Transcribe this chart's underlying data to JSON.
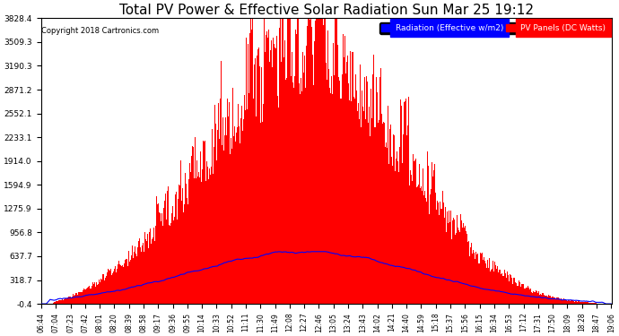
{
  "title": "Total PV Power & Effective Solar Radiation Sun Mar 25 19:12",
  "copyright": "Copyright 2018 Cartronics.com",
  "legend_radiation": "Radiation (Effective w/m2)",
  "legend_pv": "PV Panels (DC Watts)",
  "yticks": [
    -0.4,
    318.7,
    637.7,
    956.8,
    1275.9,
    1594.9,
    1914.0,
    2233.1,
    2552.1,
    2871.2,
    3190.3,
    3509.3,
    3828.4
  ],
  "ymin": -0.4,
  "ymax": 3828.4,
  "background_color": "#ffffff",
  "plot_bg_color": "#ffffff",
  "grid_color": "#aaaaaa",
  "red_fill_color": "#ff0000",
  "blue_line_color": "#0000ff",
  "title_color": "#000000",
  "title_fontsize": 11,
  "xtick_labels": [
    "06:44",
    "07:04",
    "07:23",
    "07:42",
    "08:01",
    "08:20",
    "08:39",
    "08:58",
    "09:17",
    "09:36",
    "09:55",
    "10:14",
    "10:33",
    "10:52",
    "11:11",
    "11:30",
    "11:49",
    "12:08",
    "12:27",
    "12:46",
    "13:05",
    "13:24",
    "13:43",
    "14:02",
    "14:21",
    "14:40",
    "14:59",
    "15:18",
    "15:37",
    "15:56",
    "16:15",
    "16:34",
    "16:53",
    "17:12",
    "17:31",
    "17:50",
    "18:09",
    "18:28",
    "18:47",
    "19:06"
  ],
  "num_points": 780,
  "rad_peak": 700,
  "pv_peak": 3828.4
}
